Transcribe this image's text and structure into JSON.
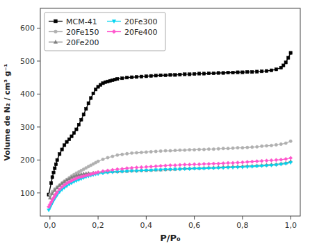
{
  "chart_data": {
    "type": "line",
    "xlabel": "P/P₀",
    "ylabel": "Volume de N₂ / cm³ g⁻¹",
    "xlim": [
      -0.04,
      1.04
    ],
    "ylim": [
      30,
      660
    ],
    "xticks": [
      {
        "value": 0.0,
        "label": "0,0"
      },
      {
        "value": 0.2,
        "label": "0,2"
      },
      {
        "value": 0.4,
        "label": "0,4"
      },
      {
        "value": 0.6,
        "label": "0,6"
      },
      {
        "value": 0.8,
        "label": "0,8"
      },
      {
        "value": 1.0,
        "label": "1,0"
      }
    ],
    "yticks": [
      100,
      200,
      300,
      400,
      500,
      600
    ],
    "grid": false,
    "legend": "upper left",
    "series": [
      {
        "name": "MCM-41",
        "color": "#000000",
        "marker": "square",
        "x": [
          -0.005,
          0.005,
          0.01,
          0.015,
          0.02,
          0.025,
          0.03,
          0.04,
          0.05,
          0.06,
          0.07,
          0.08,
          0.09,
          0.1,
          0.11,
          0.12,
          0.13,
          0.14,
          0.15,
          0.16,
          0.17,
          0.18,
          0.19,
          0.2,
          0.21,
          0.22,
          0.23,
          0.24,
          0.25,
          0.26,
          0.27,
          0.28,
          0.3,
          0.32,
          0.34,
          0.36,
          0.38,
          0.4,
          0.42,
          0.44,
          0.46,
          0.48,
          0.5,
          0.52,
          0.54,
          0.56,
          0.58,
          0.6,
          0.62,
          0.64,
          0.66,
          0.68,
          0.7,
          0.72,
          0.74,
          0.76,
          0.78,
          0.8,
          0.82,
          0.84,
          0.86,
          0.88,
          0.9,
          0.92,
          0.94,
          0.96,
          0.97,
          0.98,
          0.99,
          1.0
        ],
        "values": [
          95,
          130,
          148,
          162,
          175,
          187,
          200,
          218,
          232,
          245,
          255,
          263,
          272,
          282,
          293,
          307,
          322,
          338,
          355,
          372,
          388,
          402,
          414,
          422,
          428,
          433,
          436,
          438,
          440,
          442,
          444,
          446,
          448,
          450,
          451,
          452,
          453,
          454,
          455,
          456,
          457,
          457,
          458,
          458,
          459,
          460,
          460,
          461,
          462,
          462,
          463,
          463,
          464,
          464,
          465,
          465,
          466,
          466,
          467,
          467,
          468,
          469,
          470,
          472,
          475,
          480,
          487,
          496,
          510,
          525
        ]
      },
      {
        "name": "20Fe150",
        "color": "#b0b0b0",
        "marker": "circle",
        "x": [
          0.0,
          0.01,
          0.02,
          0.03,
          0.04,
          0.05,
          0.06,
          0.07,
          0.08,
          0.09,
          0.1,
          0.11,
          0.12,
          0.13,
          0.14,
          0.15,
          0.16,
          0.17,
          0.18,
          0.19,
          0.2,
          0.22,
          0.24,
          0.26,
          0.28,
          0.3,
          0.32,
          0.34,
          0.36,
          0.38,
          0.4,
          0.42,
          0.44,
          0.46,
          0.48,
          0.5,
          0.52,
          0.54,
          0.56,
          0.58,
          0.6,
          0.62,
          0.64,
          0.66,
          0.68,
          0.7,
          0.72,
          0.74,
          0.76,
          0.78,
          0.8,
          0.82,
          0.84,
          0.86,
          0.88,
          0.9,
          0.92,
          0.94,
          0.96,
          0.98,
          1.0
        ],
        "values": [
          95,
          104,
          112,
          118,
          124,
          130,
          136,
          141,
          146,
          151,
          156,
          160,
          164,
          168,
          172,
          176,
          180,
          184,
          188,
          192,
          196,
          202,
          207,
          211,
          215,
          217,
          219,
          221,
          222,
          223,
          224,
          225,
          226,
          227,
          228,
          228,
          229,
          230,
          230,
          231,
          231,
          232,
          232,
          233,
          233,
          234,
          235,
          235,
          236,
          237,
          237,
          238,
          239,
          240,
          242,
          243,
          244,
          246,
          248,
          251,
          257
        ]
      },
      {
        "name": "20Fe200",
        "color": "#808080",
        "marker": "triangle-up",
        "x": [
          0.0,
          0.01,
          0.02,
          0.03,
          0.04,
          0.05,
          0.06,
          0.07,
          0.08,
          0.09,
          0.1,
          0.11,
          0.12,
          0.13,
          0.14,
          0.15,
          0.16,
          0.18,
          0.2,
          0.22,
          0.24,
          0.26,
          0.28,
          0.3,
          0.32,
          0.34,
          0.36,
          0.38,
          0.4,
          0.42,
          0.44,
          0.46,
          0.48,
          0.5,
          0.52,
          0.54,
          0.56,
          0.58,
          0.6,
          0.62,
          0.64,
          0.66,
          0.68,
          0.7,
          0.72,
          0.74,
          0.76,
          0.78,
          0.8,
          0.82,
          0.84,
          0.86,
          0.88,
          0.9,
          0.92,
          0.94,
          0.96,
          0.98,
          1.0
        ],
        "values": [
          85,
          98,
          108,
          116,
          123,
          129,
          134,
          139,
          143,
          147,
          150,
          153,
          155,
          157,
          158,
          159,
          160,
          161,
          162,
          163,
          164,
          165,
          165,
          166,
          166,
          167,
          167,
          168,
          168,
          169,
          170,
          170,
          171,
          172,
          172,
          173,
          174,
          174,
          175,
          175,
          176,
          177,
          177,
          178,
          179,
          179,
          180,
          180,
          181,
          182,
          182,
          183,
          184,
          185,
          186,
          187,
          189,
          191,
          196
        ]
      },
      {
        "name": "20Fe300",
        "color": "#00d4f0",
        "marker": "triangle-down",
        "x": [
          -0.005,
          0.0,
          0.005,
          0.01,
          0.015,
          0.02,
          0.025,
          0.03,
          0.04,
          0.05,
          0.06,
          0.07,
          0.08,
          0.09,
          0.1,
          0.11,
          0.12,
          0.13,
          0.14,
          0.15,
          0.16,
          0.17,
          0.18,
          0.19,
          0.2,
          0.22,
          0.24,
          0.26,
          0.28,
          0.3,
          0.32,
          0.34,
          0.36,
          0.38,
          0.4,
          0.42,
          0.44,
          0.46,
          0.48,
          0.5,
          0.52,
          0.54,
          0.56,
          0.58,
          0.6,
          0.62,
          0.64,
          0.66,
          0.68,
          0.7,
          0.72,
          0.74,
          0.76,
          0.78,
          0.8,
          0.82,
          0.84,
          0.86,
          0.88,
          0.9,
          0.92,
          0.94,
          0.96,
          0.98,
          1.0
        ],
        "values": [
          48,
          55,
          63,
          70,
          77,
          83,
          89,
          94,
          103,
          110,
          116,
          121,
          126,
          130,
          134,
          137,
          140,
          143,
          146,
          149,
          151,
          153,
          155,
          157,
          158,
          160,
          162,
          163,
          164,
          165,
          166,
          167,
          167,
          168,
          169,
          169,
          170,
          170,
          171,
          171,
          172,
          172,
          173,
          173,
          174,
          174,
          174,
          175,
          175,
          176,
          176,
          177,
          177,
          178,
          178,
          179,
          180,
          181,
          182,
          183,
          184,
          185,
          187,
          189,
          192
        ]
      },
      {
        "name": "20Fe400",
        "color": "#ff55cc",
        "marker": "diamond",
        "x": [
          -0.005,
          0.0,
          0.005,
          0.01,
          0.015,
          0.02,
          0.025,
          0.03,
          0.04,
          0.05,
          0.06,
          0.07,
          0.08,
          0.09,
          0.1,
          0.11,
          0.12,
          0.13,
          0.14,
          0.15,
          0.16,
          0.17,
          0.18,
          0.19,
          0.2,
          0.22,
          0.24,
          0.26,
          0.28,
          0.3,
          0.32,
          0.34,
          0.36,
          0.38,
          0.4,
          0.42,
          0.44,
          0.46,
          0.48,
          0.5,
          0.52,
          0.54,
          0.56,
          0.58,
          0.6,
          0.62,
          0.64,
          0.66,
          0.68,
          0.7,
          0.72,
          0.74,
          0.76,
          0.78,
          0.8,
          0.82,
          0.84,
          0.86,
          0.88,
          0.9,
          0.92,
          0.94,
          0.96,
          0.98,
          1.0
        ],
        "values": [
          58,
          65,
          72,
          79,
          85,
          91,
          97,
          102,
          111,
          118,
          124,
          129,
          133,
          137,
          141,
          144,
          147,
          149,
          151,
          153,
          155,
          157,
          159,
          161,
          163,
          166,
          168,
          170,
          172,
          173,
          175,
          176,
          177,
          178,
          179,
          180,
          181,
          182,
          183,
          184,
          184,
          185,
          186,
          186,
          187,
          187,
          188,
          188,
          189,
          189,
          190,
          191,
          191,
          192,
          193,
          194,
          195,
          196,
          197,
          198,
          199,
          200,
          201,
          203,
          206
        ]
      }
    ]
  }
}
